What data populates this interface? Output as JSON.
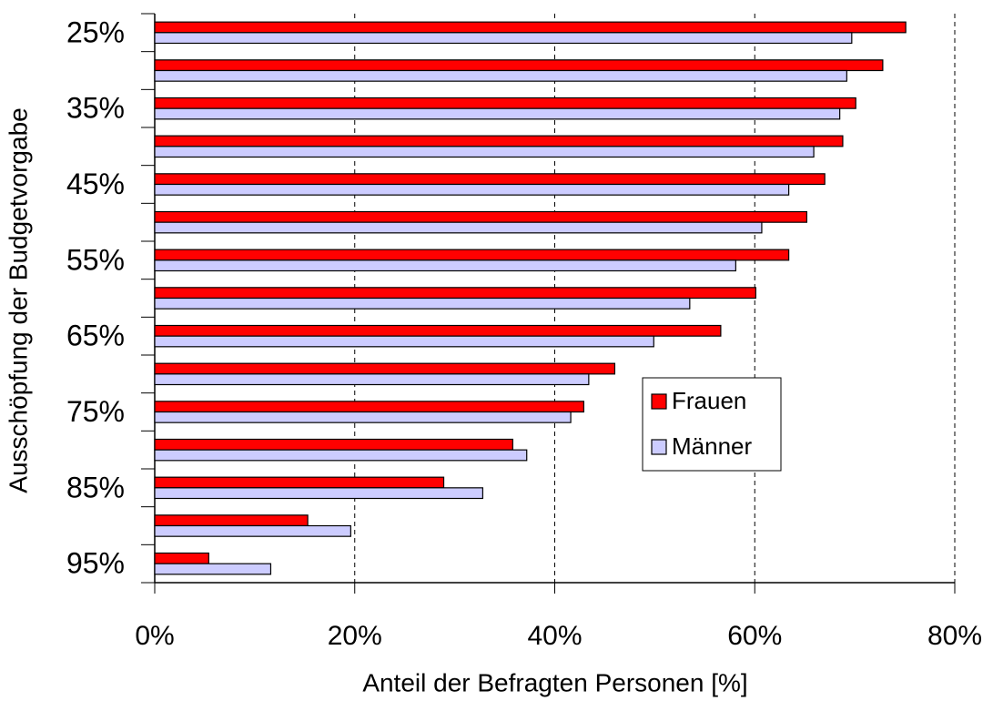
{
  "chart_data": {
    "type": "barh",
    "xlabel": "Anteil der Befragten Personen [%]",
    "ylabel": "Ausschöpfung der Budgetvorgabe",
    "categories": [
      "25%",
      null,
      "35%",
      null,
      "45%",
      null,
      "55%",
      null,
      "65%",
      null,
      "75%",
      null,
      "85%",
      null,
      "95%"
    ],
    "series": [
      {
        "name": "Frauen",
        "color": "#ff0000",
        "values": [
          75.1,
          72.8,
          70.1,
          68.8,
          67.0,
          65.2,
          63.4,
          60.1,
          56.6,
          46.0,
          42.9,
          35.8,
          28.9,
          15.3,
          5.4
        ]
      },
      {
        "name": "Männer",
        "color": "#ccccff",
        "values": [
          69.7,
          69.2,
          68.5,
          65.9,
          63.4,
          60.7,
          58.1,
          53.5,
          49.9,
          43.4,
          41.6,
          37.2,
          32.8,
          19.6,
          11.6
        ]
      }
    ],
    "xlim": [
      0,
      80
    ],
    "xticks": [
      {
        "value": 0,
        "label": "0%"
      },
      {
        "value": 20,
        "label": "20%"
      },
      {
        "value": 40,
        "label": "40%"
      },
      {
        "value": 60,
        "label": "60%"
      },
      {
        "value": 80,
        "label": "80%"
      }
    ],
    "grid": true,
    "legend": "right"
  }
}
